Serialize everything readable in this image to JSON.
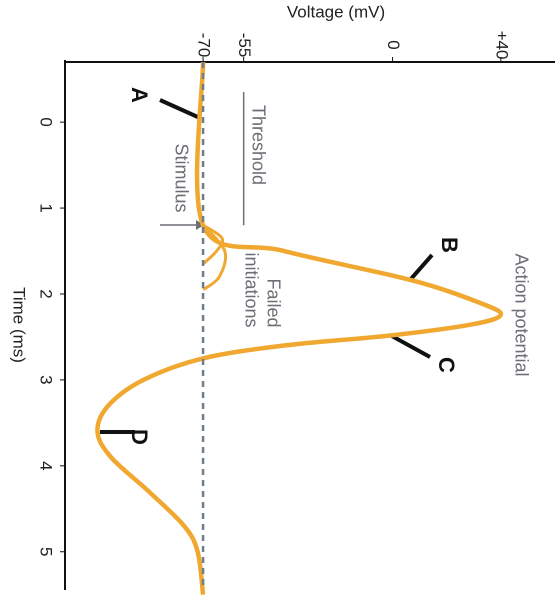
{
  "chart_data": {
    "type": "line",
    "x_label": "Time (ms)",
    "y_label": "Voltage (mV)",
    "xlim": [
      -0.7,
      5.55
    ],
    "xticks": [
      0,
      1,
      2,
      3,
      4,
      5
    ],
    "ylim": [
      -121,
      60
    ],
    "yticks": [
      -70,
      -55,
      0,
      {
        "value": 40,
        "label": "+40"
      }
    ],
    "series": [
      {
        "color": "#f0a830",
        "x": [
          -0.7,
          1.2,
          1.5,
          1.84,
          2.1,
          2.24,
          2.35,
          2.48,
          2.6,
          2.75,
          3.0,
          3.3,
          3.6,
          3.9,
          4.3,
          4.7,
          5.0,
          5.5
        ],
        "values": [
          -70,
          -70,
          -40,
          7,
          32,
          40,
          30,
          0,
          -40,
          -70,
          -92,
          -105,
          -109,
          -104,
          -90,
          -77,
          -72,
          -70
        ]
      },
      {
        "color": "#f0a830",
        "x": [
          1.2,
          1.35,
          1.5,
          1.65
        ],
        "values": [
          -70,
          -63,
          -65,
          -70
        ]
      },
      {
        "color": "#f0a830",
        "x": [
          1.2,
          1.5,
          1.8,
          1.95
        ],
        "values": [
          -70,
          -62,
          -64,
          -70
        ]
      }
    ],
    "resting_line": -70,
    "threshold": {
      "value": -55,
      "label": "Threshold"
    },
    "annotations": {
      "stimulus": "Stimulus",
      "failed": [
        "Failed",
        "initiations"
      ],
      "action_potential": "Action potential",
      "A": "A",
      "B": "B",
      "C": "C",
      "D": "D"
    }
  }
}
